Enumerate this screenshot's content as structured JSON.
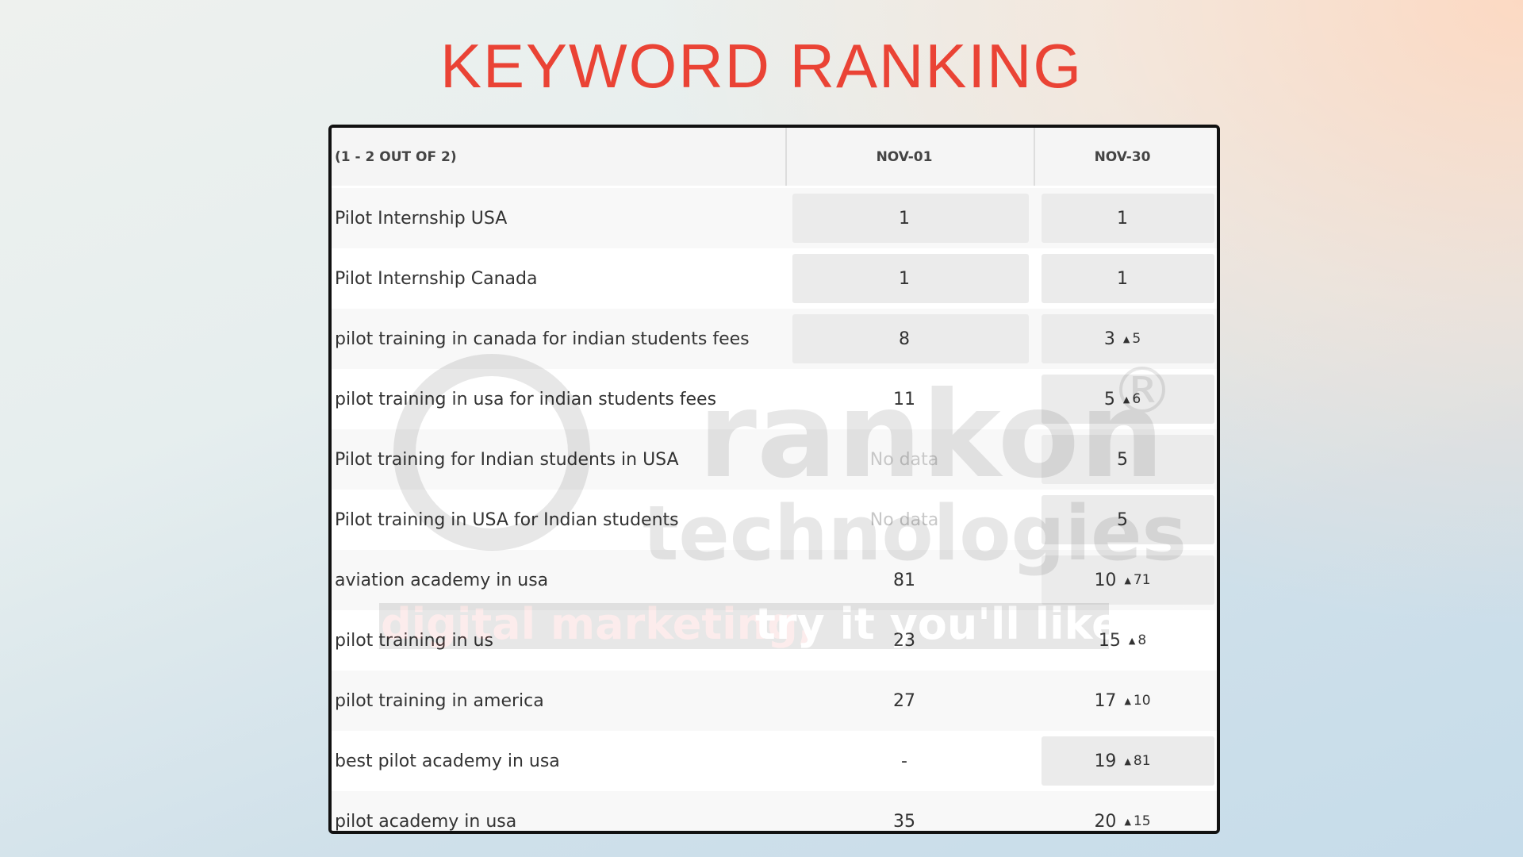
{
  "title": "KEYWORD RANKING",
  "watermark": {
    "brand": "rankon",
    "mark": "®",
    "sub": "technologies",
    "tagline_red": "digital marketing,",
    "tagline_white": "try it you'll like it!"
  },
  "table": {
    "header": [
      "(1 - 2 OUT OF 2)",
      "NOV-01",
      "NOV-30"
    ],
    "rows": [
      {
        "keyword": "Pilot Internship USA",
        "nov01": 1,
        "nov30": 1
      },
      {
        "keyword": "Pilot Internship Canada",
        "nov01": 1,
        "nov30": 1
      },
      {
        "keyword": "pilot training in canada for indian students fees",
        "nov01": 8,
        "nov30": 3,
        "change": 5
      },
      {
        "keyword": "pilot training in usa for indian students fees",
        "nov01": 11,
        "nov30": 5,
        "change": 6
      },
      {
        "keyword": "Pilot training for Indian students in USA",
        "nov01": "No data",
        "nov30": 5
      },
      {
        "keyword": "Pilot training in USA for Indian students",
        "nov01": "No data",
        "nov30": 5
      },
      {
        "keyword": "aviation academy in usa",
        "nov01": 81,
        "nov30": 10,
        "change": 71
      },
      {
        "keyword": "pilot training in us",
        "nov01": 23,
        "nov30": 15,
        "change": 8
      },
      {
        "keyword": "pilot training in america",
        "nov01": 27,
        "nov30": 17,
        "change": 10
      },
      {
        "keyword": "best pilot academy in usa",
        "nov01": "-",
        "nov30": 19,
        "change": 81
      },
      {
        "keyword": "pilot academy in usa",
        "nov01": 35,
        "nov30": 20,
        "change": 15
      }
    ]
  }
}
